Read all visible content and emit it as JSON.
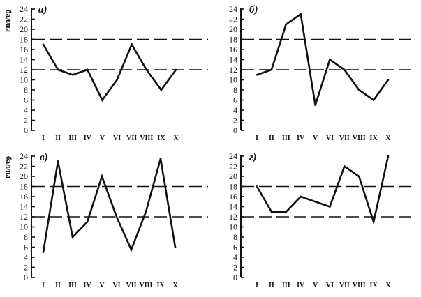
{
  "chart_data": [
    {
      "type": "line",
      "panel_label": "а)",
      "ylabel": "баллы",
      "categories": [
        "I",
        "II",
        "III",
        "IV",
        "V",
        "VI",
        "VII",
        "VIII",
        "IX",
        "X"
      ],
      "values": [
        17,
        12,
        11,
        12,
        6,
        10,
        17,
        12,
        8,
        12
      ],
      "yticks": [
        0,
        2,
        4,
        6,
        8,
        10,
        12,
        14,
        16,
        18,
        20,
        22,
        24
      ],
      "ylim": [
        0,
        24
      ],
      "reference_lines": [
        18,
        12
      ]
    },
    {
      "type": "line",
      "panel_label": "б)",
      "ylabel": "",
      "categories": [
        "I",
        "II",
        "III",
        "IV",
        "V",
        "VI",
        "VII",
        "VIII",
        "IX",
        "X"
      ],
      "values": [
        11,
        12,
        21,
        23,
        5,
        14,
        12,
        8,
        6,
        10
      ],
      "yticks": [
        0,
        2,
        4,
        6,
        8,
        10,
        12,
        14,
        16,
        18,
        20,
        22,
        24
      ],
      "ylim": [
        0,
        24
      ],
      "reference_lines": [
        18,
        12
      ]
    },
    {
      "type": "line",
      "panel_label": "в)",
      "ylabel": "баллы",
      "categories": [
        "I",
        "II",
        "III",
        "IV",
        "V",
        "VI",
        "VII",
        "VIII",
        "IX",
        "X"
      ],
      "values": [
        5,
        23,
        8,
        11,
        20,
        12,
        5.5,
        13,
        23.5,
        6
      ],
      "yticks": [
        0,
        2,
        4,
        6,
        8,
        10,
        12,
        14,
        16,
        18,
        20,
        22,
        24
      ],
      "ylim": [
        0,
        24
      ],
      "reference_lines": [
        18,
        12
      ]
    },
    {
      "type": "line",
      "panel_label": "г)",
      "ylabel": "",
      "categories": [
        "I",
        "II",
        "III",
        "IV",
        "V",
        "VI",
        "VII",
        "VIII",
        "IX",
        "X"
      ],
      "values": [
        18,
        13,
        13,
        16,
        15,
        14,
        22,
        20,
        11,
        24
      ],
      "yticks": [
        0,
        2,
        4,
        6,
        8,
        10,
        12,
        14,
        16,
        18,
        20,
        22,
        24
      ],
      "ylim": [
        0,
        24
      ],
      "reference_lines": [
        18,
        12
      ]
    }
  ]
}
